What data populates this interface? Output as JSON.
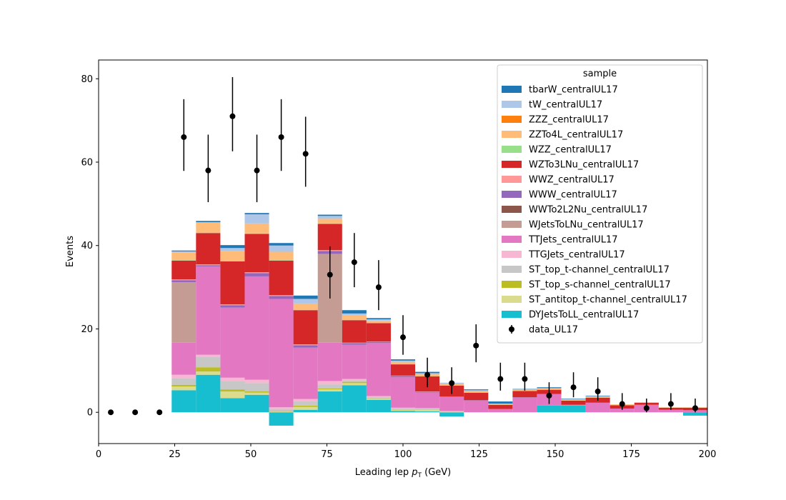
{
  "chart_data": {
    "type": "bar",
    "stacked": true,
    "title": "",
    "xlabel_prefix": "Leading lep ",
    "xlabel_symbol": "p",
    "xlabel_sub": "T",
    "xlabel_suffix": " (GeV)",
    "ylabel": "Events",
    "xlim": [
      0,
      200
    ],
    "ylim": [
      -7.5,
      84.5
    ],
    "xticks": [
      "0",
      "25",
      "50",
      "75",
      "100",
      "125",
      "150",
      "175",
      "200"
    ],
    "yticks": [
      "0",
      "20",
      "40",
      "60",
      "80"
    ],
    "grid": false,
    "legend": {
      "title": "sample",
      "placement": "upper right"
    },
    "bins": [
      [
        24,
        32
      ],
      [
        32,
        40
      ],
      [
        40,
        48
      ],
      [
        48,
        56
      ],
      [
        56,
        64
      ],
      [
        64,
        72
      ],
      [
        72,
        80
      ],
      [
        80,
        88
      ],
      [
        88,
        96
      ],
      [
        96,
        104
      ],
      [
        104,
        112
      ],
      [
        112,
        120
      ],
      [
        120,
        128
      ],
      [
        128,
        136
      ],
      [
        136,
        144
      ],
      [
        144,
        152
      ],
      [
        152,
        160
      ],
      [
        160,
        168
      ],
      [
        168,
        176
      ],
      [
        176,
        184
      ],
      [
        184,
        192
      ],
      [
        192,
        200
      ]
    ],
    "series": [
      {
        "name": "DYJetsToLL_centralUL17",
        "color": "#17becf",
        "values": [
          5.3,
          9.0,
          3.4,
          4.2,
          -3.2,
          0.6,
          5.0,
          6.5,
          3.0,
          0.3,
          0.2,
          -1.0,
          0,
          0,
          0,
          1.6,
          1.6,
          0,
          0,
          0,
          0,
          -0.8
        ]
      },
      {
        "name": "ST_antitop_t-channel_centralUL17",
        "color": "#dbdb8d",
        "values": [
          0.9,
          0.8,
          1.6,
          0.5,
          0.2,
          0.7,
          0.5,
          0.5,
          0.3,
          0.2,
          0.4,
          0.1,
          0,
          0,
          0,
          0,
          0,
          0,
          0,
          0,
          0,
          0
        ]
      },
      {
        "name": "ST_top_s-channel_centralUL17",
        "color": "#bcbd22",
        "values": [
          0.4,
          1.0,
          0.5,
          0.3,
          0.1,
          0.3,
          0.2,
          0.3,
          0.1,
          0.1,
          0.1,
          0,
          0,
          0,
          0,
          0,
          0,
          0,
          0,
          0,
          0,
          0
        ]
      },
      {
        "name": "ST_top_t-channel_centralUL17",
        "color": "#c7c7c7",
        "values": [
          1.5,
          2.5,
          2.0,
          2.0,
          0.5,
          1.0,
          1.0,
          0.4,
          0.2,
          0.3,
          0.2,
          0.1,
          0,
          0,
          0,
          0,
          0,
          0,
          0,
          0,
          0,
          0
        ]
      },
      {
        "name": "TTGJets_centralUL17",
        "color": "#f7b6d2",
        "values": [
          0.9,
          0.5,
          0.8,
          0.8,
          0.4,
          0.6,
          0.8,
          0.3,
          0.3,
          0.2,
          0.1,
          0.1,
          0,
          0,
          0,
          0,
          0,
          0,
          0,
          0,
          0,
          0
        ]
      },
      {
        "name": "TTJets_centralUL17",
        "color": "#e377c2",
        "values": [
          7.7,
          21.2,
          16.8,
          24.8,
          26.0,
          12.3,
          9.2,
          8.2,
          12.7,
          7.3,
          3.7,
          3.4,
          2.8,
          0.8,
          3.5,
          2.8,
          0.2,
          2.3,
          0.9,
          1.8,
          0.6,
          0.5
        ]
      },
      {
        "name": "WJetsToLNu_centralUL17",
        "color": "#c49c94",
        "values": [
          14.5,
          0,
          0,
          0,
          0,
          0,
          21.3,
          0,
          0,
          0,
          0,
          0,
          0,
          0,
          0,
          0,
          0,
          0,
          0,
          0,
          0,
          0
        ]
      },
      {
        "name": "WWTo2L2Nu_centralUL17",
        "color": "#8c564b",
        "values": [
          0,
          0,
          0,
          0,
          0,
          0,
          0,
          0,
          0,
          0,
          0,
          0,
          0,
          0,
          0,
          0,
          0,
          0,
          0,
          0,
          0,
          0
        ]
      },
      {
        "name": "WWW_centralUL17",
        "color": "#9467bd",
        "values": [
          0.5,
          0.3,
          0.6,
          0.8,
          0.7,
          0.6,
          0.7,
          0.4,
          0.3,
          0.3,
          0.2,
          0.1,
          0.1,
          0,
          0.1,
          0,
          0,
          0,
          0,
          0,
          0,
          0
        ]
      },
      {
        "name": "WWZ_centralUL17",
        "color": "#ff9896",
        "values": [
          0.2,
          0.2,
          0.2,
          0.2,
          0.2,
          0.2,
          0.2,
          0.1,
          0.1,
          0.1,
          0.1,
          0,
          0,
          0,
          0,
          0,
          0,
          0,
          0,
          0,
          0,
          0
        ]
      },
      {
        "name": "WZTo3LNu_centralUL17",
        "color": "#d62728",
        "values": [
          4.5,
          7.5,
          10.3,
          9.2,
          8.3,
          8.2,
          6.3,
          5.4,
          4.4,
          2.7,
          3.6,
          2.6,
          1.8,
          1.0,
          1.5,
          1.0,
          1.0,
          1.2,
          0.8,
          0.5,
          0.5,
          0.6
        ]
      },
      {
        "name": "WZZ_centralUL17",
        "color": "#98df8a",
        "values": [
          0.1,
          0.1,
          0.1,
          0.1,
          0.1,
          0.1,
          0.1,
          0.1,
          0,
          0,
          0,
          0,
          0,
          0,
          0,
          0,
          0,
          0,
          0,
          0,
          0,
          0
        ]
      },
      {
        "name": "ZZTo4L_centralUL17",
        "color": "#ffbb78",
        "values": [
          1.8,
          2.5,
          2.4,
          2.4,
          2.0,
          1.5,
          1.1,
          1.0,
          0.6,
          0.6,
          0.5,
          0.5,
          0.4,
          0.2,
          0.3,
          0.3,
          0.3,
          0.3,
          0.2,
          0.1,
          0.1,
          0.1
        ]
      },
      {
        "name": "ZZZ_centralUL17",
        "color": "#ff7f0e",
        "values": [
          0,
          0,
          0,
          0,
          0,
          0,
          0,
          0,
          0,
          0,
          0,
          0,
          0,
          0,
          0,
          0,
          0,
          0,
          0,
          0,
          0,
          0
        ]
      },
      {
        "name": "tW_centralUL17",
        "color": "#aec7e8",
        "values": [
          0.3,
          0,
          0.7,
          2.2,
          1.5,
          1.1,
          0.7,
          0.5,
          0.3,
          0.3,
          0.3,
          0.2,
          0.2,
          0.1,
          0.1,
          0.1,
          0.1,
          0.1,
          0,
          0,
          0,
          0
        ]
      },
      {
        "name": "tbarW_centralUL17",
        "color": "#1f77b4",
        "values": [
          0.2,
          0.3,
          0.7,
          0.3,
          0.6,
          0.8,
          0.3,
          0.8,
          0.3,
          0.3,
          0.3,
          0,
          0.2,
          0.5,
          0.1,
          0.2,
          0.1,
          0.1,
          0,
          0,
          0,
          0
        ]
      }
    ],
    "data_series": {
      "name": "data_UL17",
      "color": "#000000",
      "x": [
        4,
        12,
        20,
        28,
        36,
        44,
        52,
        60,
        68,
        76,
        84,
        92,
        100,
        108,
        116,
        124,
        132,
        140,
        148,
        156,
        164,
        172,
        180,
        188,
        196
      ],
      "y": [
        0,
        0,
        0,
        66,
        58,
        71,
        58,
        66,
        62,
        33,
        36,
        30,
        18,
        9,
        7,
        16,
        8,
        8,
        4,
        6,
        5,
        2,
        1,
        2,
        1
      ],
      "err_low": [
        0,
        0,
        0,
        8.1,
        7.6,
        8.4,
        7.6,
        8.1,
        7.9,
        5.7,
        6.0,
        5.5,
        4.2,
        3.0,
        2.6,
        4.0,
        2.8,
        2.8,
        2.0,
        2.4,
        2.2,
        1.4,
        1.0,
        1.4,
        1.0
      ],
      "err_high": [
        0,
        0,
        0,
        9.1,
        8.6,
        9.4,
        8.6,
        9.1,
        8.9,
        6.8,
        7.0,
        6.5,
        5.3,
        4.1,
        3.8,
        5.1,
        3.9,
        3.9,
        3.2,
        3.6,
        3.4,
        2.6,
        2.3,
        2.6,
        2.3
      ]
    }
  }
}
